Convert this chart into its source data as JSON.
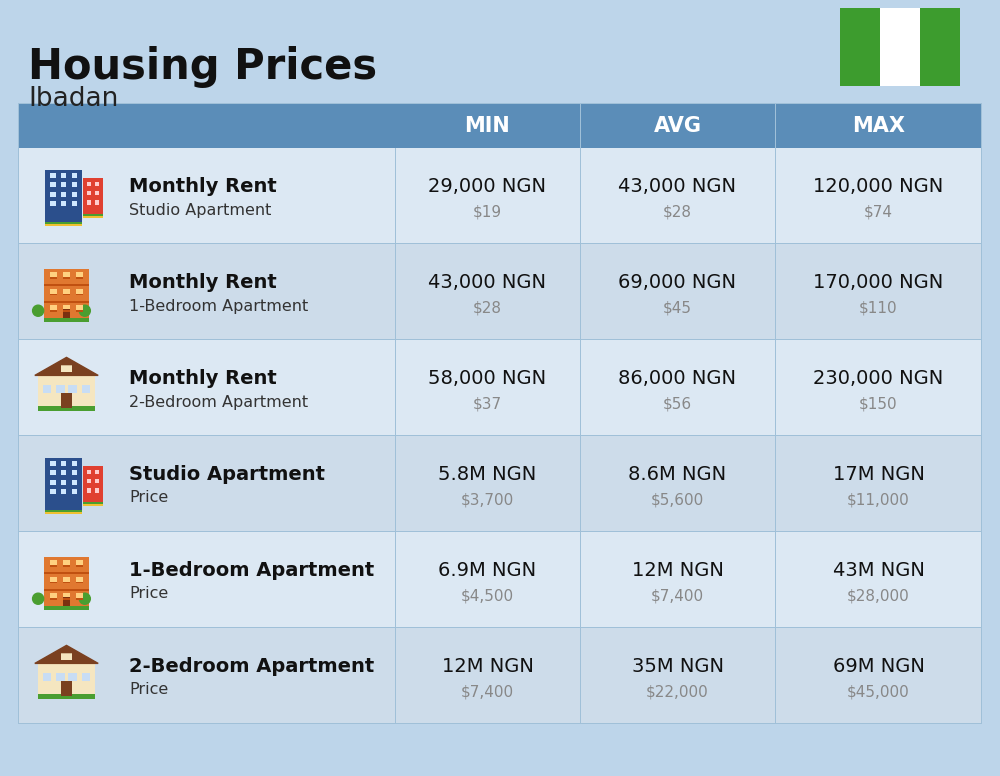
{
  "title": "Housing Prices",
  "subtitle": "Ibadan",
  "background_color": "#bdd5ea",
  "header_bg_color": "#5b8db8",
  "header_text_color": "#ffffff",
  "row_bg_colors": [
    "#dce8f3",
    "#cddcea"
  ],
  "col_headers": [
    "MIN",
    "AVG",
    "MAX"
  ],
  "rows": [
    {
      "bold_label": "Monthly Rent",
      "sub_label": "Studio Apartment",
      "min_ngn": "29,000 NGN",
      "min_usd": "$19",
      "avg_ngn": "43,000 NGN",
      "avg_usd": "$28",
      "max_ngn": "120,000 NGN",
      "max_usd": "$74",
      "icon_type": "blue_office"
    },
    {
      "bold_label": "Monthly Rent",
      "sub_label": "1-Bedroom Apartment",
      "min_ngn": "43,000 NGN",
      "min_usd": "$28",
      "avg_ngn": "69,000 NGN",
      "avg_usd": "$45",
      "max_ngn": "170,000 NGN",
      "max_usd": "$110",
      "icon_type": "orange_building"
    },
    {
      "bold_label": "Monthly Rent",
      "sub_label": "2-Bedroom Apartment",
      "min_ngn": "58,000 NGN",
      "min_usd": "$37",
      "avg_ngn": "86,000 NGN",
      "avg_usd": "$56",
      "max_ngn": "230,000 NGN",
      "max_usd": "$150",
      "icon_type": "beige_house"
    },
    {
      "bold_label": "Studio Apartment",
      "sub_label": "Price",
      "min_ngn": "5.8M NGN",
      "min_usd": "$3,700",
      "avg_ngn": "8.6M NGN",
      "avg_usd": "$5,600",
      "max_ngn": "17M NGN",
      "max_usd": "$11,000",
      "icon_type": "blue_office"
    },
    {
      "bold_label": "1-Bedroom Apartment",
      "sub_label": "Price",
      "min_ngn": "6.9M NGN",
      "min_usd": "$4,500",
      "avg_ngn": "12M NGN",
      "avg_usd": "$7,400",
      "max_ngn": "43M NGN",
      "max_usd": "$28,000",
      "icon_type": "orange_building"
    },
    {
      "bold_label": "2-Bedroom Apartment",
      "sub_label": "Price",
      "min_ngn": "12M NGN",
      "min_usd": "$7,400",
      "avg_ngn": "35M NGN",
      "avg_usd": "$22,000",
      "max_ngn": "69M NGN",
      "max_usd": "$45,000",
      "icon_type": "beige_house"
    }
  ],
  "flag_green": "#3d9c2e",
  "flag_white": "#ffffff",
  "divider_color": "#a0c0d8",
  "title_fontsize": 30,
  "subtitle_fontsize": 19,
  "header_fontsize": 15,
  "cell_ngn_fontsize": 14,
  "cell_usd_fontsize": 11,
  "label_bold_fontsize": 14,
  "label_sub_fontsize": 11.5
}
